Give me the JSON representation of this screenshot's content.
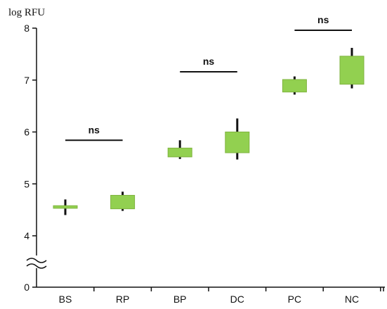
{
  "chart_data": {
    "type": "box",
    "ylabel": "log RFU",
    "y_ticks": [
      "0",
      "4",
      "5",
      "6",
      "7",
      "8"
    ],
    "y_axis_break": true,
    "ylim": [
      4,
      8
    ],
    "categories": [
      "BS",
      "RP",
      "BP",
      "DC",
      "PC",
      "NC"
    ],
    "boxes": [
      {
        "category": "BS",
        "min": 4.4,
        "q1": 4.53,
        "q3": 4.58,
        "max": 4.7
      },
      {
        "category": "RP",
        "min": 4.48,
        "q1": 4.52,
        "q3": 4.78,
        "max": 4.85
      },
      {
        "category": "BP",
        "min": 5.48,
        "q1": 5.52,
        "q3": 5.69,
        "max": 5.84
      },
      {
        "category": "DC",
        "min": 5.47,
        "q1": 5.6,
        "q3": 6.0,
        "max": 6.26
      },
      {
        "category": "PC",
        "min": 6.72,
        "q1": 6.77,
        "q3": 7.01,
        "max": 7.07
      },
      {
        "category": "NC",
        "min": 6.84,
        "q1": 6.92,
        "q3": 7.46,
        "max": 7.62
      }
    ],
    "significance": [
      {
        "from": "BS",
        "to": "RP",
        "y": 5.84,
        "label": "ns"
      },
      {
        "from": "BP",
        "to": "DC",
        "y": 7.16,
        "label": "ns"
      },
      {
        "from": "PC",
        "to": "NC",
        "y": 7.96,
        "label": "ns"
      }
    ],
    "box_color": "#92d050",
    "whisker_color": "#111111",
    "grid": false,
    "legend": "none"
  }
}
